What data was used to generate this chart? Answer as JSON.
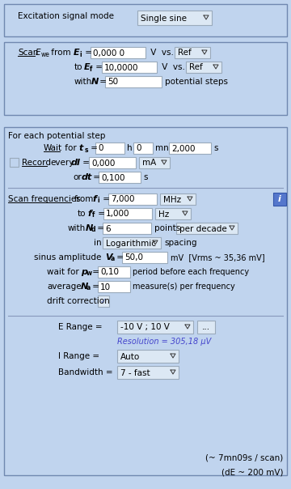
{
  "bg_color": "#c0d4ee",
  "panel_bg": "#b8ccec",
  "box_border": "#7088b0",
  "input_bg": "#ffffff",
  "input_border": "#9aaabb",
  "dropdown_bg": "#e0e8f4",
  "section1": {
    "title": "Excitation signal mode",
    "dropdown": "Single sine"
  },
  "footer": [
    "(~ 7mn09s / scan)",
    "(dE ~ 200 mV)"
  ]
}
